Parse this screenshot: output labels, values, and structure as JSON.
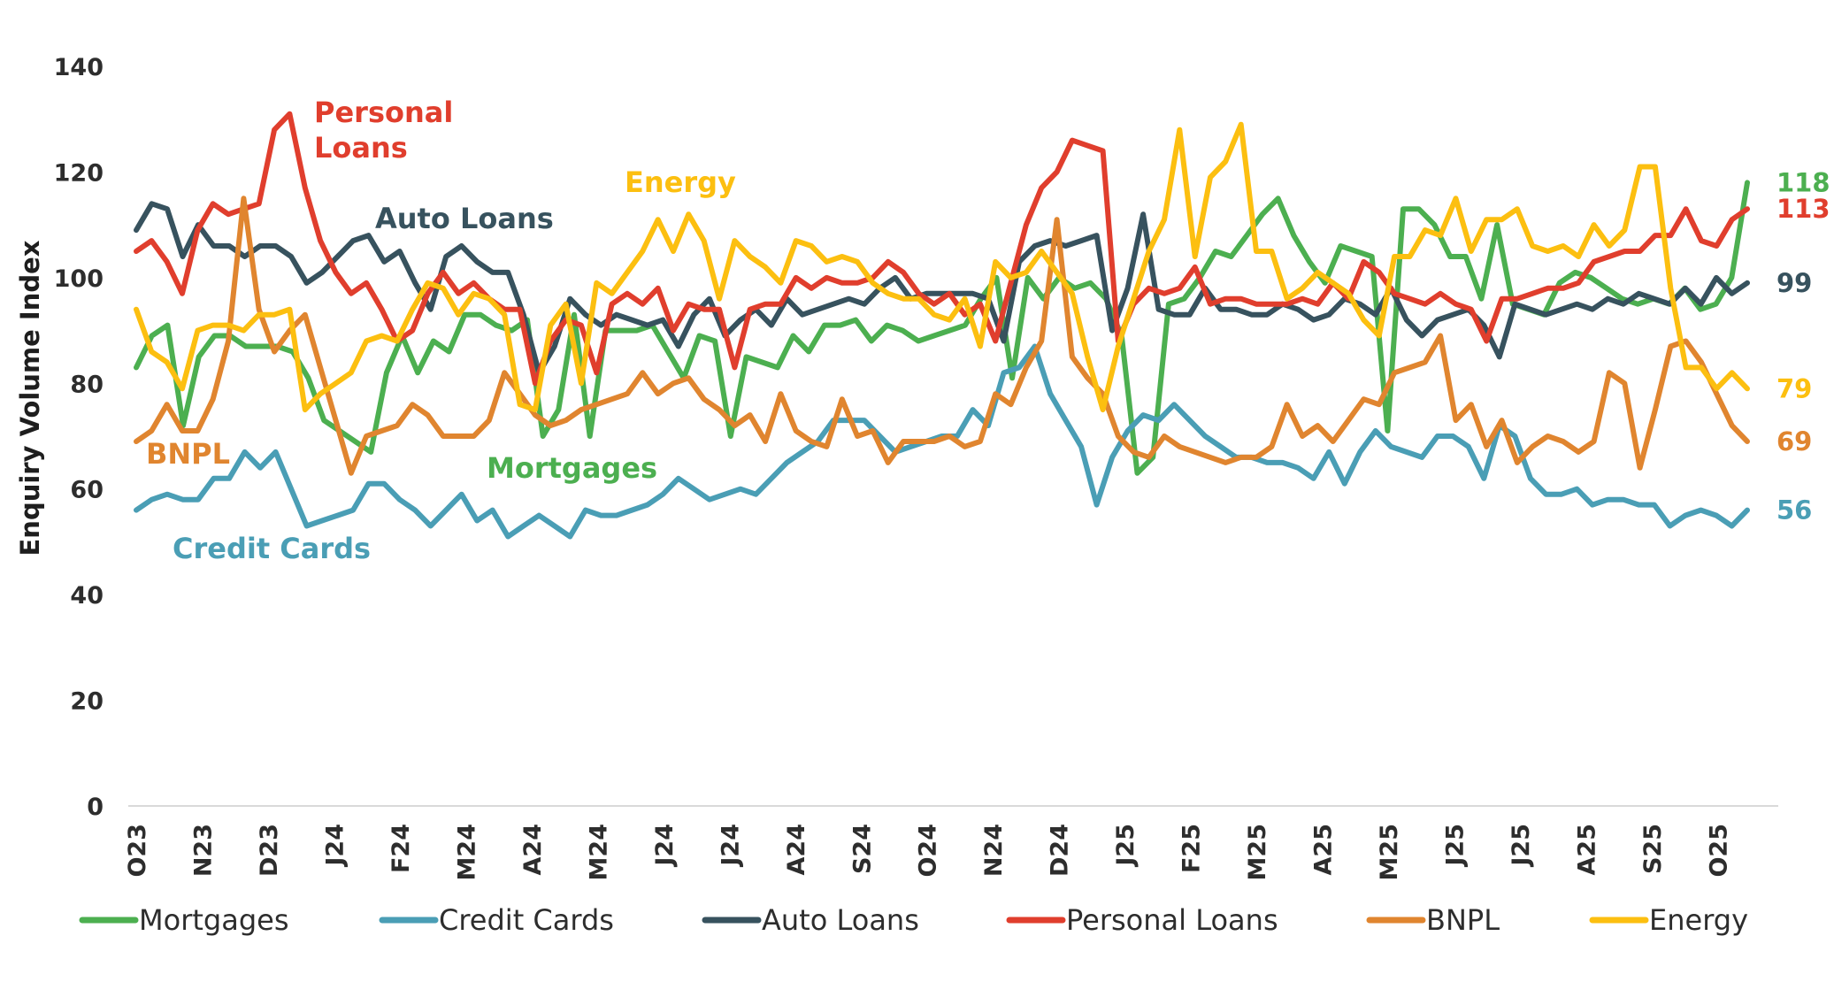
{
  "chart_data": {
    "type": "line",
    "ylabel": "Enquiry Volume Index",
    "xlabel": "",
    "ylim": [
      0,
      140
    ],
    "yticks": [
      0,
      20,
      40,
      60,
      80,
      100,
      120,
      140
    ],
    "grid": false,
    "legend_position": "bottom",
    "x_tick_labels": [
      "O23",
      "N23",
      "D23",
      "J24",
      "F24",
      "M24",
      "A24",
      "M24",
      "J24",
      "J24",
      "A24",
      "S24",
      "O24",
      "N24",
      "D24",
      "J25",
      "F25",
      "M25",
      "A25",
      "M25",
      "J25",
      "J25",
      "A25",
      "S25",
      "O25"
    ],
    "series": [
      {
        "name": "Mortgages",
        "color": "#4caf50",
        "annotation": "Mortgages",
        "end_label": "118",
        "values": [
          83,
          89,
          91,
          72,
          85,
          89,
          89,
          87,
          87,
          87,
          86,
          81,
          73,
          71,
          69,
          67,
          82,
          89,
          82,
          88,
          86,
          93,
          93,
          91,
          90,
          92,
          70,
          75,
          93,
          70,
          90,
          90,
          90,
          91,
          86,
          81,
          89,
          88,
          70,
          85,
          84,
          83,
          89,
          86,
          91,
          91,
          92,
          88,
          91,
          90,
          88,
          89,
          90,
          91,
          96,
          100,
          81,
          100,
          96,
          100,
          98,
          99,
          96,
          89,
          63,
          66,
          95,
          96,
          100,
          105,
          104,
          108,
          112,
          115,
          108,
          103,
          99,
          106,
          105,
          104,
          71,
          113,
          113,
          110,
          104,
          104,
          96,
          110,
          95,
          94,
          93,
          99,
          101,
          100,
          98,
          96,
          95,
          96,
          95,
          98,
          94,
          95,
          100,
          118
        ]
      },
      {
        "name": "Credit Cards",
        "color": "#4a9eb5",
        "annotation": "Credit Cards",
        "end_label": "56",
        "values": [
          56,
          58,
          59,
          58,
          58,
          62,
          62,
          67,
          64,
          67,
          60,
          53,
          54,
          55,
          56,
          61,
          61,
          58,
          56,
          53,
          56,
          59,
          54,
          56,
          51,
          53,
          55,
          53,
          51,
          56,
          55,
          55,
          56,
          57,
          59,
          62,
          60,
          58,
          59,
          60,
          59,
          62,
          65,
          67,
          69,
          73,
          73,
          73,
          70,
          67,
          68,
          69,
          70,
          70,
          75,
          72,
          82,
          83,
          87,
          78,
          73,
          68,
          57,
          66,
          71,
          74,
          73,
          76,
          73,
          70,
          68,
          66,
          66,
          65,
          65,
          64,
          62,
          67,
          61,
          67,
          71,
          68,
          67,
          66,
          70,
          70,
          68,
          62,
          72,
          70,
          62,
          59,
          59,
          60,
          57,
          58,
          58,
          57,
          57,
          53,
          55,
          56,
          55,
          53,
          56
        ]
      },
      {
        "name": "Auto Loans",
        "color": "#37525e",
        "annotation": "Auto Loans",
        "end_label": "99",
        "values": [
          109,
          114,
          113,
          104,
          110,
          106,
          106,
          104,
          106,
          106,
          104,
          99,
          101,
          104,
          107,
          108,
          103,
          105,
          99,
          94,
          104,
          106,
          103,
          101,
          101,
          93,
          82,
          87,
          96,
          93,
          91,
          93,
          92,
          91,
          92,
          87,
          93,
          96,
          89,
          92,
          94,
          91,
          96,
          93,
          94,
          95,
          96,
          95,
          98,
          100,
          96,
          97,
          97,
          97,
          97,
          96,
          88,
          103,
          106,
          107,
          106,
          107,
          108,
          90,
          98,
          112,
          94,
          93,
          93,
          98,
          94,
          94,
          93,
          93,
          95,
          94,
          92,
          93,
          96,
          95,
          93,
          98,
          92,
          89,
          92,
          93,
          94,
          91,
          85,
          95,
          94,
          93,
          94,
          95,
          94,
          96,
          95,
          97,
          96,
          95,
          98,
          95,
          100,
          97,
          99
        ]
      },
      {
        "name": "Personal Loans",
        "color": "#e03e2d",
        "annotation": "Personal Loans",
        "end_label": "113",
        "values": [
          105,
          107,
          103,
          97,
          109,
          114,
          112,
          113,
          114,
          128,
          131,
          117,
          107,
          101,
          97,
          99,
          94,
          88,
          90,
          97,
          101,
          97,
          99,
          96,
          94,
          94,
          80,
          88,
          92,
          91,
          82,
          95,
          97,
          95,
          98,
          90,
          95,
          94,
          94,
          83,
          94,
          95,
          95,
          100,
          98,
          100,
          99,
          99,
          100,
          103,
          101,
          97,
          95,
          97,
          93,
          95,
          88,
          99,
          110,
          117,
          120,
          126,
          125,
          124,
          88,
          95,
          98,
          97,
          98,
          102,
          95,
          96,
          96,
          95,
          95,
          95,
          96,
          95,
          99,
          96,
          103,
          101,
          97,
          96,
          95,
          97,
          95,
          94,
          88,
          96,
          96,
          97,
          98,
          98,
          99,
          103,
          104,
          105,
          105,
          108,
          108,
          113,
          107,
          106,
          111,
          113
        ]
      },
      {
        "name": "BNPL",
        "color": "#e0852f",
        "annotation": "BNPL",
        "end_label": "69",
        "values": [
          69,
          71,
          76,
          71,
          71,
          77,
          88,
          115,
          94,
          86,
          90,
          93,
          83,
          73,
          63,
          70,
          71,
          72,
          76,
          74,
          70,
          70,
          70,
          73,
          82,
          78,
          74,
          72,
          73,
          75,
          76,
          77,
          78,
          82,
          78,
          80,
          81,
          77,
          75,
          72,
          74,
          69,
          78,
          71,
          69,
          68,
          77,
          70,
          71,
          65,
          69,
          69,
          69,
          70,
          68,
          69,
          78,
          76,
          83,
          88,
          111,
          85,
          81,
          78,
          70,
          67,
          66,
          70,
          68,
          67,
          66,
          65,
          66,
          66,
          68,
          76,
          70,
          72,
          69,
          73,
          77,
          76,
          82,
          83,
          84,
          89,
          73,
          76,
          68,
          73,
          65,
          68,
          70,
          69,
          67,
          69,
          82,
          80,
          64,
          75,
          87,
          88,
          84,
          78,
          72,
          69
        ]
      },
      {
        "name": "Energy",
        "color": "#fcbf10",
        "annotation": "Energy",
        "end_label": "79",
        "values": [
          94,
          86,
          84,
          79,
          90,
          91,
          91,
          90,
          93,
          93,
          94,
          75,
          78,
          80,
          82,
          88,
          89,
          88,
          94,
          99,
          98,
          93,
          97,
          96,
          93,
          76,
          75,
          91,
          95,
          80,
          99,
          97,
          101,
          105,
          111,
          105,
          112,
          107,
          96,
          107,
          104,
          102,
          99,
          107,
          106,
          103,
          104,
          103,
          99,
          97,
          96,
          96,
          93,
          92,
          96,
          87,
          103,
          100,
          101,
          105,
          101,
          97,
          85,
          75,
          87,
          96,
          105,
          111,
          128,
          104,
          119,
          122,
          129,
          105,
          105,
          96,
          98,
          101,
          99,
          97,
          92,
          89,
          104,
          104,
          109,
          108,
          115,
          105,
          111,
          111,
          113,
          106,
          105,
          106,
          104,
          110,
          106,
          109,
          121,
          121,
          98,
          83,
          83,
          79,
          82,
          79
        ]
      }
    ]
  },
  "legend": {
    "items": [
      {
        "label": "Mortgages",
        "color": "#4caf50"
      },
      {
        "label": "Credit Cards",
        "color": "#4a9eb5"
      },
      {
        "label": "Auto Loans",
        "color": "#37525e"
      },
      {
        "label": "Personal Loans",
        "color": "#e03e2d"
      },
      {
        "label": "BNPL",
        "color": "#e0852f"
      },
      {
        "label": "Energy",
        "color": "#fcbf10"
      }
    ]
  }
}
